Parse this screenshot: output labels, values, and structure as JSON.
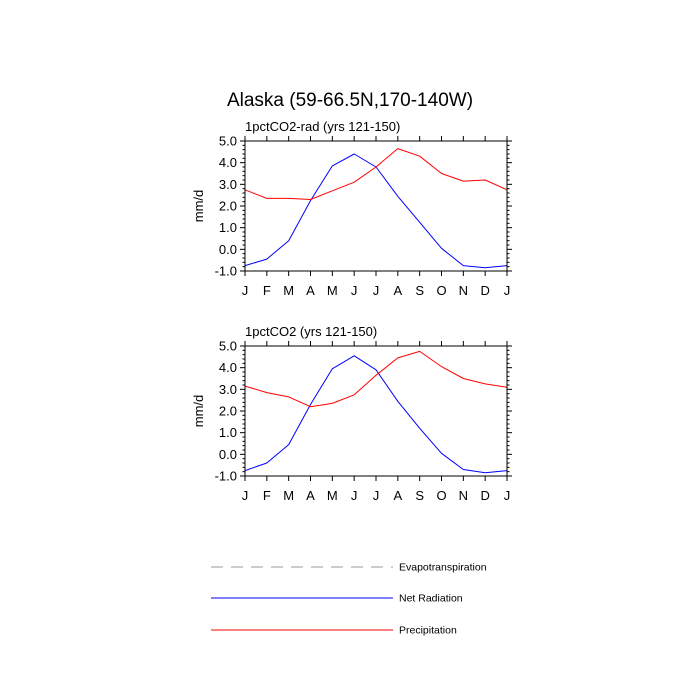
{
  "title": "Alaska (59-66.5N,170-140W)",
  "chart_data": [
    {
      "type": "line",
      "title": "1pctCO2-rad (yrs 121-150)",
      "xlabel": "",
      "ylabel": "mm/d",
      "ylim": [
        -1.0,
        5.0
      ],
      "yticks": [
        "-1.0",
        "0.0",
        "1.0",
        "2.0",
        "3.0",
        "4.0",
        "5.0"
      ],
      "categories": [
        "J",
        "F",
        "M",
        "A",
        "M",
        "J",
        "J",
        "A",
        "S",
        "O",
        "N",
        "D",
        "J"
      ],
      "series": [
        {
          "name": "Net Radiation",
          "color": "#0000ff",
          "values": [
            -0.75,
            -0.45,
            0.4,
            2.25,
            3.85,
            4.4,
            3.8,
            2.45,
            1.25,
            0.05,
            -0.75,
            -0.85,
            -0.75
          ]
        },
        {
          "name": "Precipitation",
          "color": "#ff0000",
          "values": [
            2.75,
            2.35,
            2.35,
            2.3,
            2.7,
            3.1,
            3.8,
            4.65,
            4.3,
            3.5,
            3.15,
            3.2,
            2.75
          ]
        }
      ]
    },
    {
      "type": "line",
      "title": "1pctCO2 (yrs 121-150)",
      "xlabel": "",
      "ylabel": "mm/d",
      "ylim": [
        -1.0,
        5.0
      ],
      "yticks": [
        "-1.0",
        "0.0",
        "1.0",
        "2.0",
        "3.0",
        "4.0",
        "5.0"
      ],
      "categories": [
        "J",
        "F",
        "M",
        "A",
        "M",
        "J",
        "J",
        "A",
        "S",
        "O",
        "N",
        "D",
        "J"
      ],
      "series": [
        {
          "name": "Net Radiation",
          "color": "#0000ff",
          "values": [
            -0.75,
            -0.4,
            0.45,
            2.3,
            3.95,
            4.55,
            3.9,
            2.45,
            1.2,
            0.05,
            -0.7,
            -0.85,
            -0.75
          ]
        },
        {
          "name": "Precipitation",
          "color": "#ff0000",
          "values": [
            3.15,
            2.85,
            2.65,
            2.2,
            2.35,
            2.75,
            3.65,
            4.45,
            4.75,
            4.05,
            3.5,
            3.25,
            3.1
          ]
        }
      ]
    }
  ],
  "legend": [
    {
      "label": "Evapotranspiration",
      "color": "#999999",
      "style": "dashed"
    },
    {
      "label": "Net Radiation",
      "color": "#0000ff",
      "style": "solid"
    },
    {
      "label": "Precipitation",
      "color": "#ff0000",
      "style": "solid"
    }
  ]
}
